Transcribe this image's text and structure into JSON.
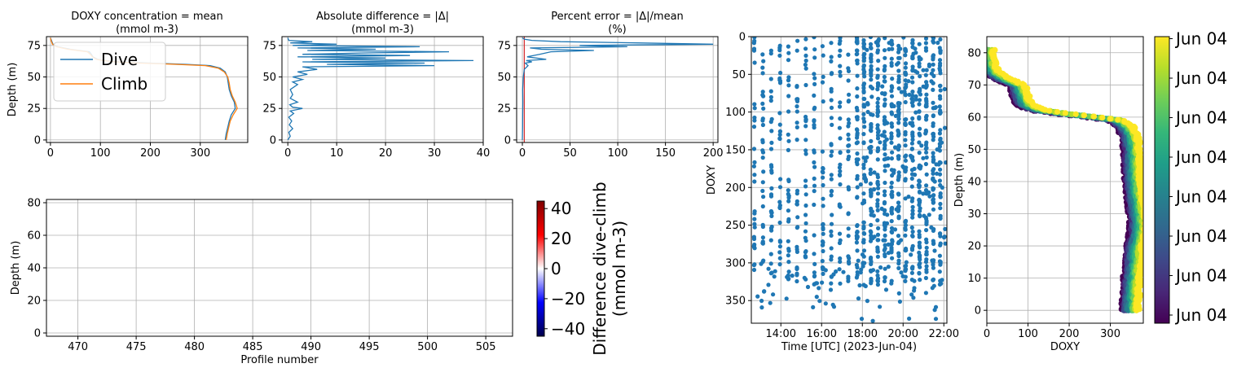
{
  "colors": {
    "dive": "#1f77b4",
    "climb": "#ff7f0e",
    "scatter": "#1f77b4",
    "zero_line": "#d62728",
    "grid": "#b0b0b0"
  },
  "chart_data": [
    {
      "id": "doxy_mean",
      "type": "line",
      "title": "DOXY concentration  = mean",
      "subtitle": "(mmol m-3)",
      "xlabel": "",
      "ylabel": "Depth (m)",
      "xlim": [
        -8,
        395
      ],
      "ylim": [
        82,
        -2
      ],
      "y_inverted": true,
      "xticks": [
        0,
        100,
        200,
        300
      ],
      "yticks": [
        0,
        25,
        50,
        75
      ],
      "grid": true,
      "legend": "upper-left",
      "series": [
        {
          "name": "Dive",
          "color": "#1f77b4",
          "points": [
            [
              350,
              0
            ],
            [
              352,
              5
            ],
            [
              355,
              10
            ],
            [
              358,
              15
            ],
            [
              362,
              20
            ],
            [
              370,
              25
            ],
            [
              368,
              30
            ],
            [
              362,
              35
            ],
            [
              358,
              40
            ],
            [
              356,
              45
            ],
            [
              354,
              50
            ],
            [
              350,
              54
            ],
            [
              340,
              57
            ],
            [
              320,
              59
            ],
            [
              270,
              60
            ],
            [
              200,
              61
            ],
            [
              140,
              62
            ],
            [
              110,
              63
            ],
            [
              95,
              64
            ],
            [
              85,
              66
            ],
            [
              82,
              68
            ],
            [
              78,
              70
            ],
            [
              40,
              72
            ],
            [
              15,
              74
            ],
            [
              5,
              76
            ],
            [
              2,
              79
            ],
            [
              0,
              81
            ]
          ]
        },
        {
          "name": "Climb",
          "color": "#ff7f0e",
          "points": [
            [
              352,
              0
            ],
            [
              354,
              5
            ],
            [
              357,
              10
            ],
            [
              360,
              15
            ],
            [
              366,
              20
            ],
            [
              374,
              25
            ],
            [
              370,
              30
            ],
            [
              364,
              35
            ],
            [
              360,
              40
            ],
            [
              358,
              45
            ],
            [
              355,
              50
            ],
            [
              348,
              54
            ],
            [
              336,
              57
            ],
            [
              310,
              59
            ],
            [
              250,
              60
            ],
            [
              180,
              61
            ],
            [
              130,
              62
            ],
            [
              105,
              63
            ],
            [
              92,
              64
            ],
            [
              84,
              66
            ],
            [
              80,
              68
            ],
            [
              74,
              70
            ],
            [
              35,
              72
            ],
            [
              12,
              74
            ],
            [
              4,
              76
            ],
            [
              1,
              79
            ],
            [
              0,
              81
            ]
          ]
        }
      ]
    },
    {
      "id": "abs_diff",
      "type": "line",
      "title": "Absolute difference = |Δ|",
      "subtitle": "(mmol m-3)",
      "xlabel": "",
      "ylabel": "",
      "xlim": [
        -1.2,
        40
      ],
      "ylim": [
        82,
        -2
      ],
      "y_inverted": true,
      "xticks": [
        0,
        10,
        20,
        30,
        40
      ],
      "yticks": [
        0,
        25,
        50,
        75
      ],
      "grid": true,
      "series": [
        {
          "name": "",
          "color": "#1f77b4",
          "points": [
            [
              0,
              0
            ],
            [
              0.5,
              3
            ],
            [
              0.2,
              6
            ],
            [
              1,
              9
            ],
            [
              0.3,
              12
            ],
            [
              0.8,
              15
            ],
            [
              0.2,
              18
            ],
            [
              1.2,
              21
            ],
            [
              0.5,
              23
            ],
            [
              3,
              25
            ],
            [
              1,
              26
            ],
            [
              0.4,
              28
            ],
            [
              2,
              30
            ],
            [
              0.5,
              33
            ],
            [
              1,
              36
            ],
            [
              0.5,
              40
            ],
            [
              2,
              44
            ],
            [
              1,
              46
            ],
            [
              3,
              48
            ],
            [
              1,
              50
            ],
            [
              4,
              52
            ],
            [
              2,
              54
            ],
            [
              6,
              56
            ],
            [
              3,
              58
            ],
            [
              30,
              59
            ],
            [
              8,
              60
            ],
            [
              28,
              61
            ],
            [
              3,
              62
            ],
            [
              38,
              63
            ],
            [
              5,
              64
            ],
            [
              20,
              65
            ],
            [
              2,
              66
            ],
            [
              25,
              67
            ],
            [
              3,
              68
            ],
            [
              15,
              69
            ],
            [
              33,
              70
            ],
            [
              4,
              71
            ],
            [
              18,
              72
            ],
            [
              2,
              73
            ],
            [
              27,
              74
            ],
            [
              1,
              75
            ],
            [
              10,
              76
            ],
            [
              0.5,
              77
            ],
            [
              5,
              78
            ],
            [
              0.2,
              79
            ],
            [
              0,
              81
            ]
          ]
        }
      ]
    },
    {
      "id": "pct_err",
      "type": "line",
      "title": "Percent error = |Δ|/mean",
      "subtitle": "(%)",
      "xlabel": "",
      "ylabel": "",
      "xlim": [
        -6,
        205
      ],
      "ylim": [
        82,
        -2
      ],
      "y_inverted": true,
      "xticks": [
        0,
        50,
        100,
        150,
        200
      ],
      "yticks": [
        0,
        25,
        50,
        75
      ],
      "grid": true,
      "zero_line_x": 2,
      "series": [
        {
          "name": "",
          "color": "#1f77b4",
          "points": [
            [
              0,
              0
            ],
            [
              0.2,
              10
            ],
            [
              0.3,
              20
            ],
            [
              0.5,
              30
            ],
            [
              0.3,
              40
            ],
            [
              1,
              50
            ],
            [
              2,
              56
            ],
            [
              6,
              59
            ],
            [
              3,
              61
            ],
            [
              10,
              62
            ],
            [
              4,
              63
            ],
            [
              25,
              64
            ],
            [
              5,
              66
            ],
            [
              18,
              68
            ],
            [
              30,
              70
            ],
            [
              75,
              71
            ],
            [
              20,
              72
            ],
            [
              8,
              73
            ],
            [
              110,
              74
            ],
            [
              60,
              75
            ],
            [
              200,
              76
            ],
            [
              120,
              77
            ],
            [
              40,
              78
            ],
            [
              10,
              79
            ],
            [
              2,
              80
            ],
            [
              0,
              81
            ]
          ]
        }
      ]
    },
    {
      "id": "diff_heatmap",
      "type": "heatmap",
      "title": "",
      "xlabel": "Profile number",
      "ylabel": "Depth (m)",
      "xlim": [
        467.3,
        507.3
      ],
      "ylim": [
        82,
        -2
      ],
      "y_inverted": true,
      "xticks": [
        470,
        475,
        480,
        485,
        490,
        495,
        500,
        505
      ],
      "yticks": [
        0,
        20,
        40,
        60,
        80
      ],
      "grid": true,
      "profiles": [
        467.5,
        507
      ],
      "depth_range": [
        0,
        81
      ],
      "colorbar": {
        "label": "Difference dive-climb\n(mmol m-3)",
        "range": [
          -45,
          45
        ],
        "ticks": [
          40,
          20,
          0,
          -20,
          -40
        ],
        "tick_labels": [
          "40",
          "20",
          "0",
          "−20",
          "−40"
        ],
        "colormap": "seismic"
      }
    },
    {
      "id": "doxy_time",
      "type": "scatter",
      "title": "",
      "xlabel": "Time [UTC] (2023-Jun-04)",
      "ylabel": "DOXY",
      "xlim": [
        12.55,
        22.15
      ],
      "ylim": [
        0,
        380
      ],
      "xticks": [
        14,
        16,
        18,
        20,
        22
      ],
      "xtick_labels": [
        "14:00",
        "16:00",
        "18:00",
        "20:00",
        "22:00"
      ],
      "yticks": [
        0,
        50,
        100,
        150,
        200,
        250,
        300,
        350
      ],
      "grid": true,
      "color": "#1f77b4",
      "time_range": [
        "12:42",
        "21:50"
      ],
      "doxy_range": [
        0,
        378
      ]
    },
    {
      "id": "doxy_depth_time",
      "type": "scatter",
      "title": "",
      "xlabel": "DOXY",
      "ylabel": "Depth (m)",
      "xlim": [
        0,
        380
      ],
      "ylim": [
        85,
        -4
      ],
      "y_inverted": true,
      "xticks": [
        0,
        100,
        200,
        300
      ],
      "yticks": [
        0,
        10,
        20,
        30,
        40,
        50,
        60,
        70,
        80
      ],
      "grid": true,
      "colorbar": {
        "colormap": "viridis",
        "tick_labels": [
          "Jun 04",
          "Jun 04",
          "Jun 04",
          "Jun 04",
          "Jun 04",
          "Jun 04",
          "Jun 04",
          "Jun 04"
        ]
      },
      "profile": [
        [
          350,
          0
        ],
        [
          352,
          5
        ],
        [
          355,
          10
        ],
        [
          358,
          15
        ],
        [
          362,
          20
        ],
        [
          370,
          25
        ],
        [
          368,
          30
        ],
        [
          362,
          35
        ],
        [
          358,
          40
        ],
        [
          356,
          45
        ],
        [
          354,
          50
        ],
        [
          350,
          54
        ],
        [
          338,
          57
        ],
        [
          315,
          59
        ],
        [
          260,
          60
        ],
        [
          190,
          61
        ],
        [
          135,
          62
        ],
        [
          108,
          63
        ],
        [
          94,
          64
        ],
        [
          85,
          66
        ],
        [
          81,
          68
        ],
        [
          76,
          70
        ],
        [
          38,
          72
        ],
        [
          14,
          74
        ],
        [
          5,
          76
        ],
        [
          2,
          79
        ],
        [
          0,
          81
        ]
      ]
    }
  ]
}
